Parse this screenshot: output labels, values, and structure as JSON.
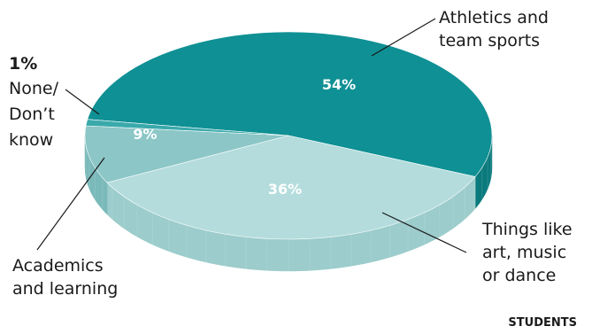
{
  "chart_data": {
    "type": "pie",
    "style": "3d-pie",
    "slices": [
      {
        "label": "Athletics and team sports",
        "label_lines": [
          "Athletics and",
          "team sports"
        ],
        "value": 54,
        "value_label": "54%",
        "color": "#0f9094",
        "side_color": "#0b7a7d"
      },
      {
        "label": "Things like art, music or dance",
        "label_lines": [
          "Things like",
          "art, music",
          "or dance"
        ],
        "value": 36,
        "value_label": "36%",
        "color": "#b4dcdc",
        "side_color": "#9ccccc"
      },
      {
        "label": "Academics and learning",
        "label_lines": [
          "Academics",
          "and learning"
        ],
        "value": 9,
        "value_label": "9%",
        "color": "#8cc6c7",
        "side_color": "#7ab9ba"
      },
      {
        "label": "None/ Don't know",
        "label_lines": [
          "None/",
          "Don’t",
          "know"
        ],
        "value": 1,
        "value_label": "1%",
        "color": "#3aa9ab",
        "side_color": "#2f9a9c"
      }
    ],
    "footer": "STUDENTS"
  }
}
